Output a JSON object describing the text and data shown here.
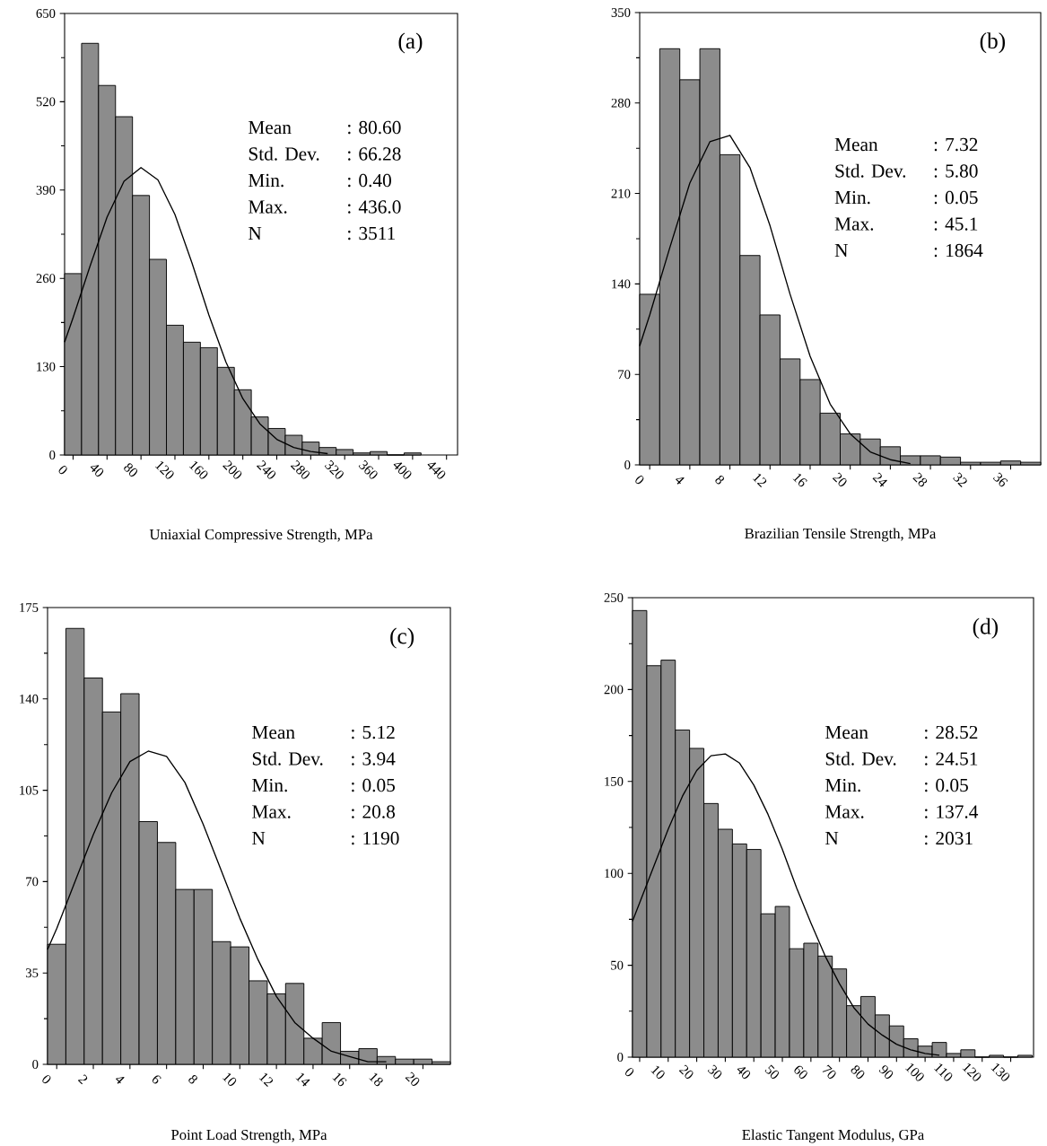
{
  "chart_data": [
    {
      "type": "histogram",
      "title": "(a)",
      "xlabel": "Uniaxial Compressive Strength, MPa",
      "color": "#8c8c8c",
      "bins": [
        -10,
        10,
        30,
        50,
        70,
        90,
        110,
        130,
        150,
        170,
        190,
        210,
        230,
        250,
        270,
        290,
        310,
        330,
        350,
        370,
        390,
        410
      ],
      "values": [
        267,
        606,
        544,
        498,
        382,
        288,
        191,
        166,
        158,
        129,
        96,
        56,
        39,
        29,
        19,
        11,
        8,
        3,
        5,
        0,
        3
      ],
      "xlim": [
        -10,
        453
      ],
      "ylim": [
        0,
        650
      ],
      "xticks": [
        0,
        40,
        80,
        120,
        160,
        200,
        240,
        280,
        320,
        360,
        400,
        440
      ],
      "yticks": [
        0,
        130,
        260,
        390,
        520,
        650
      ],
      "annotations": [
        "Mean",
        ": 80.60",
        "Std. Dev.",
        ": 66.28",
        "Min.",
        ": 0.40",
        "Max.",
        ": 436.0",
        "N",
        ": 3511"
      ],
      "series": [
        {
          "type": "line",
          "color": "#000000",
          "x": [
            -10,
            0,
            20,
            40,
            60,
            80,
            100,
            120,
            140,
            160,
            180,
            200,
            220,
            240,
            260,
            280,
            300
          ],
          "values": [
            166,
            202,
            278,
            350,
            403,
            423,
            405,
            354,
            283,
            206,
            137,
            83,
            46,
            23,
            11,
            5,
            2
          ]
        }
      ]
    },
    {
      "type": "histogram",
      "title": "(b)",
      "xlabel": "Brazilian Tensile Strength, MPa",
      "color": "#8c8c8c",
      "bins": [
        -1,
        1,
        3,
        5,
        7,
        9,
        11,
        13,
        15,
        17,
        19,
        21,
        23,
        25,
        27,
        29,
        31,
        33,
        35,
        37,
        39
      ],
      "values": [
        132,
        322,
        298,
        322,
        240,
        162,
        116,
        82,
        66,
        40,
        24,
        20,
        14,
        7,
        7,
        6,
        2,
        2,
        3,
        2
      ],
      "xlim": [
        -1,
        39
      ],
      "ylim": [
        0,
        350
      ],
      "xticks": [
        0,
        4,
        8,
        12,
        16,
        20,
        24,
        28,
        32,
        36
      ],
      "yticks": [
        0,
        70,
        140,
        210,
        280,
        350
      ],
      "annotations": [
        "Mean",
        ": 7.32",
        "Std. Dev.",
        ": 5.80",
        "Min.",
        ": 0.05",
        "Max.",
        ": 45.1",
        "N",
        ": 1864"
      ],
      "series": [
        {
          "type": "line",
          "color": "#000000",
          "x": [
            -1,
            0,
            2,
            4,
            6,
            8,
            10,
            12,
            14,
            16,
            18,
            20,
            22,
            24,
            26
          ],
          "values": [
            92,
            116,
            168,
            218,
            250,
            255,
            230,
            185,
            132,
            84,
            47,
            24,
            10,
            4,
            1
          ]
        }
      ]
    },
    {
      "type": "histogram",
      "title": "(c)",
      "xlabel": "Point Load Strength, MPa",
      "color": "#8c8c8c",
      "bins": [
        -0.5,
        0.5,
        1.5,
        2.5,
        3.5,
        4.5,
        5.5,
        6.5,
        7.5,
        8.5,
        9.5,
        10.5,
        11.5,
        12.5,
        13.5,
        14.5,
        15.5,
        16.5,
        17.5,
        18.5,
        19.5,
        20.5,
        21.5
      ],
      "values": [
        46,
        167,
        148,
        135,
        142,
        93,
        85,
        67,
        67,
        47,
        45,
        32,
        27,
        31,
        10,
        16,
        5,
        6,
        3,
        2,
        2,
        1
      ],
      "xlim": [
        -0.5,
        21.5
      ],
      "ylim": [
        0,
        175
      ],
      "xticks": [
        0,
        2,
        4,
        6,
        8,
        10,
        12,
        14,
        16,
        18,
        20
      ],
      "yticks": [
        0,
        35,
        70,
        105,
        140,
        175
      ],
      "annotations": [
        "Mean",
        ": 5.12",
        "Std. Dev.",
        ": 3.94",
        "Min.",
        ": 0.05",
        "Max.",
        ": 20.8",
        "N",
        ": 1190"
      ],
      "series": [
        {
          "type": "line",
          "color": "#000000",
          "x": [
            -0.5,
            0,
            1,
            2,
            3,
            4,
            5,
            6,
            7,
            8,
            9,
            10,
            11,
            12,
            13,
            14,
            15,
            16,
            17,
            18
          ],
          "values": [
            44,
            52,
            70,
            88,
            104,
            116,
            120,
            118,
            108,
            92,
            74,
            56,
            40,
            26,
            16,
            10,
            5,
            3,
            1,
            1
          ]
        }
      ]
    },
    {
      "type": "histogram",
      "title": "(d)",
      "xlabel": "Elastic Tangent Modulus, GPa",
      "color": "#8c8c8c",
      "bins": [
        -2.5,
        2.5,
        7.5,
        12.5,
        17.5,
        22.5,
        27.5,
        32.5,
        37.5,
        42.5,
        47.5,
        52.5,
        57.5,
        62.5,
        67.5,
        72.5,
        77.5,
        82.5,
        87.5,
        92.5,
        97.5,
        102.5,
        107.5,
        112.5,
        117.5,
        122.5,
        127.5,
        132.5,
        137.5
      ],
      "values": [
        243,
        213,
        216,
        178,
        168,
        138,
        124,
        116,
        113,
        78,
        82,
        59,
        62,
        55,
        48,
        28,
        33,
        23,
        17,
        10,
        6,
        8,
        2,
        4,
        0,
        1,
        0,
        1
      ],
      "xlim": [
        -2.5,
        138
      ],
      "ylim": [
        0,
        250
      ],
      "xticks": [
        0,
        10,
        20,
        30,
        40,
        50,
        60,
        70,
        80,
        90,
        100,
        110,
        120,
        130
      ],
      "yticks": [
        0,
        50,
        100,
        150,
        200,
        250
      ],
      "annotations": [
        "Mean",
        ": 28.52",
        "Std. Dev.",
        ": 24.51",
        "Min.",
        ": 0.05",
        "Max.",
        ": 137.4",
        "N",
        ": 2031"
      ],
      "series": [
        {
          "type": "line",
          "color": "#000000",
          "x": [
            -2.5,
            0,
            5,
            10,
            15,
            20,
            25,
            30,
            35,
            40,
            45,
            50,
            55,
            60,
            65,
            70,
            75,
            80,
            85,
            90,
            95,
            100,
            105
          ],
          "values": [
            74,
            84,
            104,
            124,
            142,
            156,
            164,
            165,
            160,
            148,
            132,
            113,
            92,
            73,
            55,
            40,
            27,
            18,
            12,
            7,
            4,
            2,
            1
          ]
        }
      ]
    }
  ]
}
